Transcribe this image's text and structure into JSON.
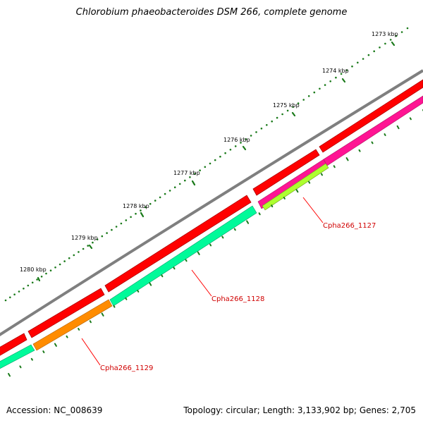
{
  "title": "Chlorobium phaeobacteroides DSM 266, complete genome",
  "footer": {
    "accession": "Accession: NC_008639",
    "summary": "Topology: circular; Length: 3,133,902 bp; Genes: 2,705"
  },
  "ticks": [
    "1273 kbp",
    "1274 kbp",
    "1275 kbp",
    "1276 kbp",
    "1277 kbp",
    "1278 kbp",
    "1279 kbp",
    "1280 kbp"
  ],
  "genes": [
    {
      "label": "Cpha266_1127",
      "color": "#ff1493"
    },
    {
      "label": "Cpha266_1128",
      "color": "#00fa9a"
    },
    {
      "label": "Cpha266_1129",
      "color": "#ff8c00"
    }
  ],
  "colors": {
    "backbone": "#7f7f7f",
    "cds": "#ff0000",
    "label": "#d00000",
    "tick": "#1a7a1a",
    "gene_highlight": "#adff2f"
  }
}
